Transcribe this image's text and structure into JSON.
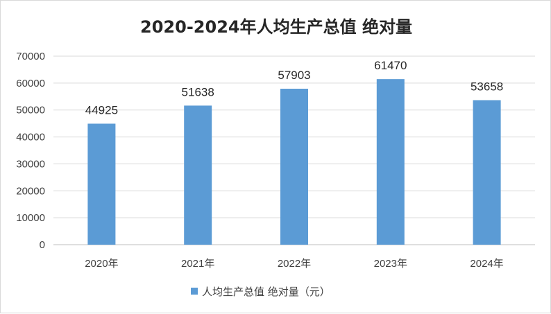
{
  "chart_data": {
    "type": "bar",
    "title": "2020-2024年人均生产总值 绝对量",
    "categories": [
      "2020年",
      "2021年",
      "2022年",
      "2023年",
      "2024年"
    ],
    "series": [
      {
        "name": "人均生产总值 绝对量（元）",
        "values": [
          44925,
          51638,
          57903,
          61470,
          53658
        ],
        "color": "#5b9bd5"
      }
    ],
    "data_labels": [
      "44925",
      "51638",
      "57903",
      "61470",
      "53658"
    ],
    "ylim": [
      0,
      70000
    ],
    "y_ticks": [
      "0",
      "10000",
      "20000",
      "30000",
      "40000",
      "50000",
      "60000",
      "70000"
    ],
    "grid": true,
    "legend_position": "bottom",
    "xlabel": "",
    "ylabel": ""
  }
}
